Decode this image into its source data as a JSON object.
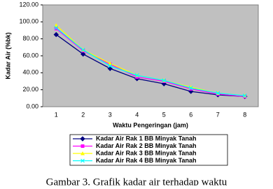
{
  "chart_data": {
    "type": "line",
    "y_label": "Kadar Air (%bk)",
    "x_label": "Waktu Pengeringan (jam)",
    "categories": [
      "1",
      "2",
      "3",
      "4",
      "5",
      "6",
      "7",
      "8"
    ],
    "series": [
      {
        "name": "Kadar Air Rak 1 BB Minyak Tanah",
        "color": "#000080",
        "marker": "diamond",
        "values": [
          85,
          62,
          45,
          33,
          27,
          18,
          14,
          12
        ]
      },
      {
        "name": "Kadar Air Rak 2 BB Minyak Tanah",
        "color": "#ff00ff",
        "marker": "square",
        "values": [
          92,
          66,
          50,
          35,
          30,
          21,
          15,
          12
        ]
      },
      {
        "name": "Kadar Air Rak 3 BB Minyak Tanah",
        "color": "#ffff00",
        "marker": "triangle",
        "values": [
          96,
          67,
          51,
          37,
          31,
          23,
          16,
          13
        ]
      },
      {
        "name": "Kadar Air Rak 4 BB Minyak Tanah",
        "color": "#00ffff",
        "marker": "x",
        "values": [
          93,
          67,
          48,
          37,
          31,
          22,
          16,
          13
        ]
      }
    ],
    "ylim": [
      0,
      120
    ],
    "yticks": [
      {
        "value": 0,
        "label": "0.00"
      },
      {
        "value": 20,
        "label": "20.00"
      },
      {
        "value": 40,
        "label": "40.00"
      },
      {
        "value": 60,
        "label": "60.00"
      },
      {
        "value": 80,
        "label": "80.00"
      },
      {
        "value": 100,
        "label": "100.00"
      },
      {
        "value": 120,
        "label": "120.00"
      }
    ],
    "grid": false,
    "legend": "bottom",
    "plot_background": "#c0c0c0"
  },
  "caption": "Gambar 3. Grafik kadar air terhadap waktu"
}
